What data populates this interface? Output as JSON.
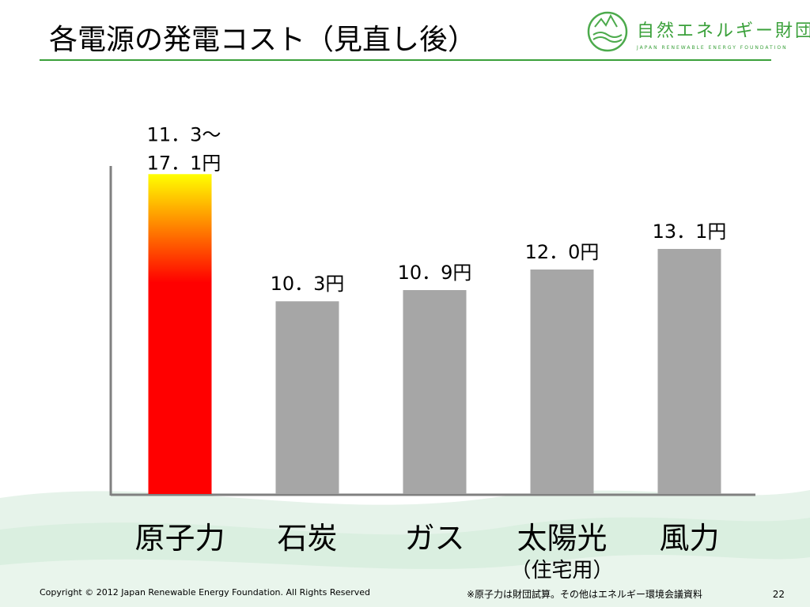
{
  "title": "各電源の発電コスト（見直し後）",
  "logo": {
    "name": "自然エネルギー財団",
    "subtitle": "JAPAN RENEWABLE ENERGY FOUNDATION"
  },
  "footer": {
    "copyright": "Copyright © 2012 Japan Renewable Energy Foundation. All Rights Reserved",
    "note": "※原子力は財団試算。その他はエネルギー環境会議資料",
    "page": 22
  },
  "chart_data": {
    "type": "bar",
    "categories": [
      "原子力",
      "石炭",
      "ガス",
      "太陽光",
      "風力"
    ],
    "category_sublabels": [
      null,
      null,
      null,
      "（住宅用）",
      null
    ],
    "values": [
      17.1,
      10.3,
      10.9,
      12.0,
      13.1
    ],
    "low_values": [
      11.3,
      null,
      null,
      null,
      null
    ],
    "value_labels": [
      [
        "11．3～",
        "17．1円"
      ],
      "10．3円",
      "10．9円",
      "12．0円",
      "13．1円"
    ],
    "colors": [
      "gradient",
      "#a6a6a6",
      "#a6a6a6",
      "#a6a6a6",
      "#a6a6a6"
    ],
    "ylim": [
      0,
      18
    ]
  }
}
